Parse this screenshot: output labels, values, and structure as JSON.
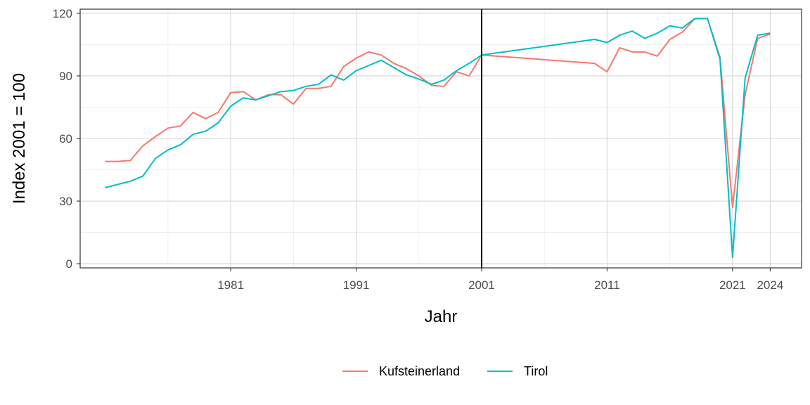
{
  "chart_data": {
    "type": "line",
    "xlabel": "Jahr",
    "ylabel": "Index 2001 = 100",
    "xlim": [
      1969,
      2026.5
    ],
    "ylim": [
      -2,
      122
    ],
    "x_ticks": [
      1981,
      1991,
      2001,
      2011,
      2021,
      2024
    ],
    "y_ticks": [
      0,
      30,
      60,
      90,
      120
    ],
    "x_minor_grid": [
      1976,
      1986,
      1996,
      2006,
      2016
    ],
    "y_minor_grid": [
      15,
      45,
      75,
      105
    ],
    "grid": true,
    "vline": 2001,
    "legend_position": "bottom",
    "series": [
      {
        "name": "Kufsteinerland",
        "color": "#F8766D",
        "x": [
          1971,
          1972,
          1973,
          1974,
          1975,
          1976,
          1977,
          1978,
          1979,
          1980,
          1981,
          1982,
          1983,
          1984,
          1985,
          1986,
          1987,
          1988,
          1989,
          1990,
          1991,
          1992,
          1993,
          1994,
          1995,
          1996,
          1997,
          1998,
          1999,
          2000,
          2001,
          2010,
          2011,
          2012,
          2013,
          2014,
          2015,
          2016,
          2017,
          2018,
          2019,
          2020,
          2021,
          2022,
          2023,
          2024
        ],
        "values": [
          49,
          49,
          49.5,
          56.5,
          61,
          65,
          66,
          72.5,
          69.5,
          72.5,
          82,
          82.5,
          78.5,
          81,
          81,
          76.5,
          84,
          84,
          85,
          94.5,
          98.5,
          101.5,
          100,
          96,
          93.5,
          90,
          85.5,
          85,
          92,
          90,
          100,
          96,
          92,
          103.5,
          101.5,
          101.5,
          99.5,
          107.5,
          111,
          117.5,
          117.5,
          99,
          27,
          81,
          108,
          110
        ]
      },
      {
        "name": "Tirol",
        "color": "#00BFC4",
        "x": [
          1971,
          1972,
          1973,
          1974,
          1975,
          1976,
          1977,
          1978,
          1979,
          1980,
          1981,
          1982,
          1983,
          1984,
          1985,
          1986,
          1987,
          1988,
          1989,
          1990,
          1991,
          1992,
          1993,
          1994,
          1995,
          1996,
          1997,
          1998,
          1999,
          2000,
          2001,
          2010,
          2011,
          2012,
          2013,
          2014,
          2015,
          2016,
          2017,
          2018,
          2019,
          2020,
          2021,
          2022,
          2023,
          2024
        ],
        "values": [
          36.5,
          38,
          39.5,
          42,
          50.5,
          54.5,
          57,
          62,
          63.5,
          67.5,
          75.5,
          79.5,
          78.5,
          80.5,
          82.5,
          83,
          85,
          86,
          90.5,
          88,
          92.5,
          95,
          97.5,
          94,
          90.5,
          88.5,
          86,
          88,
          92.5,
          96,
          100,
          107.5,
          106,
          109.5,
          111.5,
          108,
          110.5,
          114,
          113,
          117.5,
          117.5,
          98,
          3,
          89,
          109.5,
          110.5
        ]
      }
    ]
  },
  "legend": {
    "items": [
      {
        "label": "Kufsteinerland",
        "color": "#F8766D"
      },
      {
        "label": "Tirol",
        "color": "#00BFC4"
      }
    ]
  }
}
